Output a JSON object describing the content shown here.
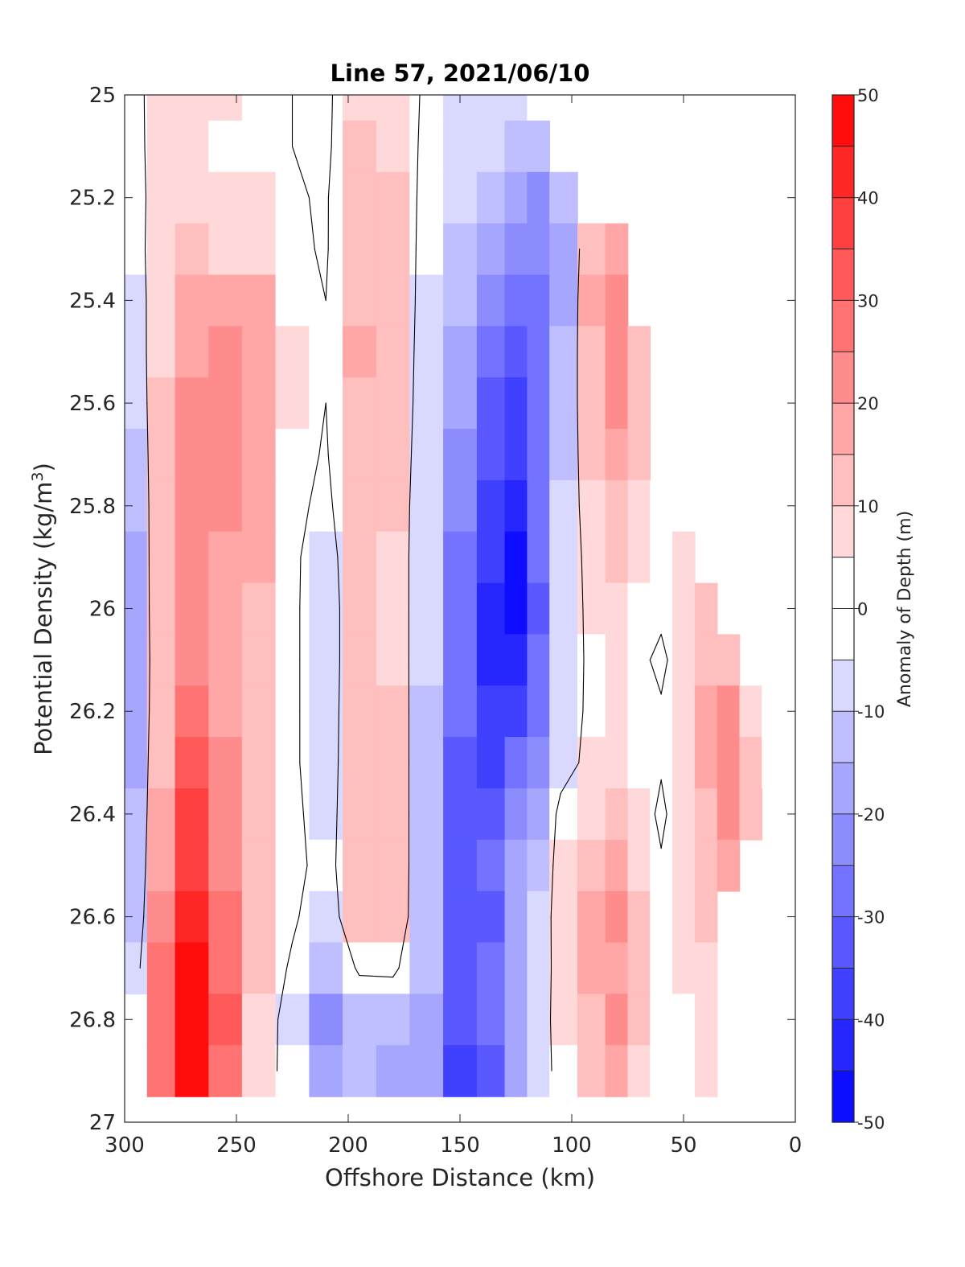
{
  "chart_data": {
    "type": "heatmap",
    "title": "Line 57, 2021/06/10",
    "xlabel": "Offshore Distance (km)",
    "ylabel": "Potential Density (kg/m³)",
    "ylabel_main": "Potential Density (kg/m",
    "ylabel_sup": "3",
    "ylabel_end": ")",
    "xlim": [
      300,
      0
    ],
    "ylim": [
      27,
      25
    ],
    "x_reversed": true,
    "y_reversed": true,
    "x_ticks": [
      300,
      250,
      200,
      150,
      100,
      50,
      0
    ],
    "y_ticks": [
      25,
      25.2,
      25.4,
      25.6,
      25.8,
      26,
      26.2,
      26.4,
      26.6,
      26.8,
      27
    ],
    "colorbar": {
      "label": "Anomaly of Depth (m)",
      "range": [
        -50,
        50
      ],
      "step": 5,
      "ticks": [
        50,
        40,
        30,
        20,
        10,
        0,
        -10,
        -20,
        -30,
        -40,
        -50
      ],
      "colormap": "blue-white-red"
    },
    "contour_level": 0,
    "x": [
      295,
      285,
      270,
      255,
      240,
      225,
      210,
      195,
      180,
      165,
      150,
      135,
      125,
      115,
      105,
      90,
      80,
      70,
      60,
      50,
      40,
      30,
      20,
      10
    ],
    "y": [
      25.0,
      25.1,
      25.2,
      25.3,
      25.4,
      25.5,
      25.6,
      25.7,
      25.8,
      25.9,
      26.0,
      26.1,
      26.2,
      26.3,
      26.4,
      26.5,
      26.6,
      26.7,
      26.8,
      26.9
    ],
    "z": [
      [
        -3,
        5,
        7,
        5,
        2,
        0,
        -2,
        8,
        8,
        -2,
        -6,
        -8,
        -9,
        -5,
        null,
        null,
        null,
        null,
        null,
        null,
        null,
        null,
        null,
        null
      ],
      [
        -4,
        6,
        8,
        4,
        3,
        0,
        -2,
        10,
        9,
        -3,
        -8,
        -10,
        -14,
        -15,
        null,
        null,
        null,
        null,
        null,
        null,
        null,
        null,
        null,
        null
      ],
      [
        -5,
        6,
        9,
        5,
        5,
        1,
        -1,
        12,
        10,
        -4,
        -10,
        -14,
        -20,
        -24,
        -15,
        null,
        null,
        null,
        null,
        null,
        null,
        null,
        null,
        null
      ],
      [
        -5,
        7,
        10,
        8,
        8,
        2,
        -1,
        13,
        11,
        -5,
        -12,
        -18,
        -24,
        -25,
        -18,
        14,
        18,
        null,
        null,
        null,
        null,
        null,
        null,
        null
      ],
      [
        -7,
        8,
        15,
        18,
        15,
        4,
        0,
        14,
        12,
        -6,
        -14,
        -22,
        -28,
        -26,
        -16,
        15,
        20,
        null,
        null,
        null,
        null,
        null,
        null,
        null
      ],
      [
        -8,
        9,
        17,
        20,
        17,
        5,
        0,
        15,
        12,
        -7,
        -17,
        -26,
        -32,
        -28,
        -14,
        14,
        24,
        12,
        null,
        null,
        null,
        null,
        null,
        null
      ],
      [
        -10,
        10,
        22,
        22,
        18,
        5,
        0,
        14,
        12,
        -8,
        -20,
        -32,
        -36,
        -28,
        -12,
        12,
        22,
        12,
        null,
        null,
        null,
        null,
        null,
        null
      ],
      [
        -12,
        10,
        24,
        21,
        17,
        4,
        -1,
        13,
        11,
        -9,
        -22,
        -34,
        -38,
        -27,
        -11,
        10,
        18,
        10,
        null,
        null,
        null,
        null,
        null,
        null
      ],
      [
        -14,
        10,
        22,
        20,
        16,
        3,
        -3,
        12,
        10,
        -10,
        -24,
        -36,
        -42,
        -28,
        -10,
        8,
        14,
        8,
        2,
        null,
        null,
        null,
        null,
        null
      ],
      [
        -16,
        11,
        20,
        19,
        15,
        2,
        -6,
        11,
        9,
        -10,
        -26,
        -40,
        -46,
        -30,
        -10,
        6,
        10,
        6,
        2,
        5,
        null,
        null,
        null,
        null
      ],
      [
        -18,
        12,
        20,
        18,
        14,
        2,
        -7,
        10,
        9,
        -10,
        -27,
        -42,
        -47,
        -31,
        -10,
        5,
        6,
        4,
        2,
        6,
        12,
        null,
        null,
        null
      ],
      [
        -20,
        12,
        22,
        18,
        13,
        2,
        -7,
        10,
        9,
        -10,
        -28,
        -42,
        -44,
        -29,
        -9,
        4,
        5,
        2,
        -2,
        5,
        14,
        12,
        null,
        2
      ],
      [
        -18,
        12,
        26,
        19,
        12,
        2,
        -7,
        11,
        10,
        -11,
        -30,
        -40,
        -38,
        -26,
        -8,
        4,
        6,
        3,
        1,
        5,
        16,
        20,
        8,
        2
      ],
      [
        -16,
        13,
        30,
        21,
        12,
        2,
        -7,
        12,
        11,
        -12,
        -32,
        -36,
        -30,
        -22,
        -6,
        5,
        8,
        4,
        1,
        6,
        16,
        24,
        12,
        4
      ],
      [
        -15,
        15,
        35,
        23,
        12,
        3,
        -6,
        12,
        11,
        -12,
        -34,
        -32,
        -24,
        -16,
        4,
        8,
        10,
        5,
        -2,
        6,
        14,
        20,
        10,
        null
      ],
      [
        -14,
        18,
        38,
        24,
        12,
        4,
        -5,
        12,
        11,
        -12,
        -33,
        -30,
        -20,
        -12,
        6,
        14,
        16,
        8,
        1,
        5,
        12,
        16,
        null,
        null
      ],
      [
        -12,
        22,
        42,
        25,
        12,
        2,
        -8,
        12,
        11,
        -13,
        -32,
        -32,
        -18,
        -8,
        6,
        18,
        20,
        10,
        2,
        5,
        10,
        null,
        null,
        null
      ],
      [
        -6,
        26,
        46,
        28,
        10,
        -2,
        -14,
        2,
        3,
        -14,
        -32,
        -30,
        -18,
        -7,
        5,
        16,
        18,
        10,
        2,
        5,
        8,
        null,
        null,
        null
      ],
      [
        null,
        28,
        48,
        30,
        8,
        -6,
        -22,
        -12,
        -14,
        -18,
        -34,
        -30,
        -18,
        -6,
        5,
        14,
        20,
        10,
        2,
        4,
        6,
        null,
        null,
        null
      ],
      [
        null,
        26,
        46,
        28,
        6,
        -5,
        -20,
        -14,
        -16,
        -20,
        -36,
        -33,
        -20,
        -6,
        4,
        12,
        16,
        9,
        1,
        3,
        5,
        null,
        null,
        null
      ]
    ]
  }
}
